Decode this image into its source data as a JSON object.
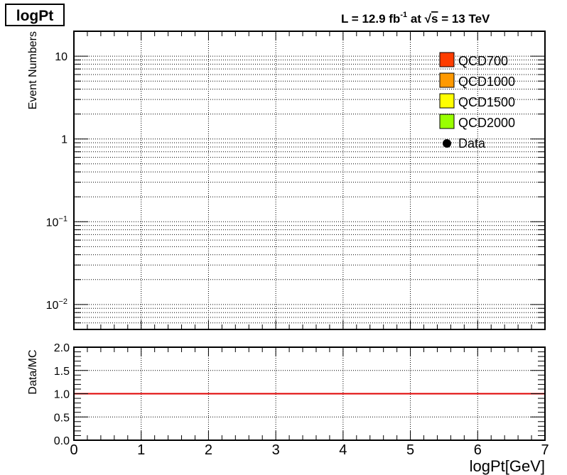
{
  "chart_data": [
    {
      "type": "bar",
      "title": "logPt",
      "subtitle": "L = 12.9 fb^-1 at √s = 13 TeV",
      "xlabel": "",
      "ylabel": "Event Numbers",
      "xlim": [
        0,
        7
      ],
      "ylim": [
        0.005,
        20
      ],
      "yscale": "log",
      "grid": true,
      "legend_position": "top-right",
      "series": [
        {
          "name": "QCD700",
          "color": "#ff3d00",
          "values": []
        },
        {
          "name": "QCD1000",
          "color": "#ff9900",
          "values": []
        },
        {
          "name": "QCD1500",
          "color": "#ffff00",
          "values": []
        },
        {
          "name": "QCD2000",
          "color": "#99ff00",
          "values": []
        },
        {
          "name": "Data",
          "color": "#000000",
          "marker": "circle",
          "values": []
        }
      ],
      "yticks": [
        {
          "value": 10,
          "label": "10"
        },
        {
          "value": 1,
          "label": "1"
        },
        {
          "value": 0.1,
          "base": "10",
          "exp": "−1"
        },
        {
          "value": 0.01,
          "base": "10",
          "exp": "−2"
        }
      ]
    },
    {
      "type": "line",
      "xlabel": "logPt[GeV]",
      "ylabel": "Data/MC",
      "xlim": [
        0,
        7
      ],
      "ylim": [
        0,
        2
      ],
      "grid": true,
      "reference_line": {
        "y": 1.0,
        "color": "#e00000"
      },
      "xticks": [
        "0",
        "1",
        "2",
        "3",
        "4",
        "5",
        "6",
        "7"
      ],
      "yticks": [
        "0.0",
        "0.5",
        "1.0",
        "1.5",
        "2.0"
      ]
    }
  ]
}
